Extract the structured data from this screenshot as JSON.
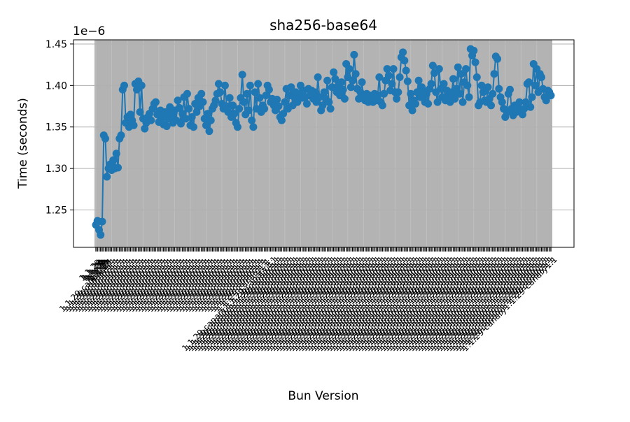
{
  "chart_data": {
    "type": "line",
    "title": "sha256-base64",
    "xlabel": "Bun Version",
    "ylabel": "Time (seconds)",
    "y_offset_label": "1e−6",
    "y_scale": 1e-06,
    "ylim": [
      1.205e-06,
      1.455e-06
    ],
    "y_ticks": [
      1.25e-06,
      1.3e-06,
      1.35e-06,
      1.4e-06,
      1.45e-06
    ],
    "y_tick_labels": [
      "1.25",
      "1.30",
      "1.35",
      "1.40",
      "1.45"
    ],
    "grid": true,
    "x_tick_labels_legible": false,
    "x_tick_labels": [
      "1.1.29-canary"
    ],
    "series": [
      {
        "color": "#1f77b4",
        "values": [
          1.232e-06,
          1.237e-06,
          1.226e-06,
          1.22e-06,
          1.236e-06,
          1.34e-06,
          1.336e-06,
          1.29e-06,
          1.3e-06,
          1.305e-06,
          1.298e-06,
          1.31e-06,
          1.3e-06,
          1.318e-06,
          1.301e-06,
          1.336e-06,
          1.34e-06,
          1.395e-06,
          1.4e-06,
          1.355e-06,
          1.362e-06,
          1.35e-06,
          1.365e-06,
          1.358e-06,
          1.352e-06,
          1.402e-06,
          1.395e-06,
          1.405e-06,
          1.368e-06,
          1.4e-06,
          1.36e-06,
          1.348e-06,
          1.355e-06,
          1.362e-06,
          1.366e-06,
          1.358e-06,
          1.372e-06,
          1.378e-06,
          1.38e-06,
          1.365e-06,
          1.356e-06,
          1.37e-06,
          1.362e-06,
          1.353e-06,
          1.368e-06,
          1.351e-06,
          1.36e-06,
          1.374e-06,
          1.364e-06,
          1.355e-06,
          1.37e-06,
          1.358e-06,
          1.382e-06,
          1.373e-06,
          1.354e-06,
          1.366e-06,
          1.386e-06,
          1.36e-06,
          1.39e-06,
          1.372e-06,
          1.352e-06,
          1.362e-06,
          1.35e-06,
          1.378e-06,
          1.368e-06,
          1.385e-06,
          1.375e-06,
          1.39e-06,
          1.38e-06,
          1.36e-06,
          1.352e-06,
          1.366e-06,
          1.345e-06,
          1.358e-06,
          1.372e-06,
          1.376e-06,
          1.382e-06,
          1.39e-06,
          1.402e-06,
          1.392e-06,
          1.378e-06,
          1.372e-06,
          1.4e-06,
          1.375e-06,
          1.368e-06,
          1.385e-06,
          1.362e-06,
          1.376e-06,
          1.366e-06,
          1.355e-06,
          1.35e-06,
          1.372e-06,
          1.385e-06,
          1.413e-06,
          1.38e-06,
          1.365e-06,
          1.39e-06,
          1.37e-06,
          1.4e-06,
          1.358e-06,
          1.35e-06,
          1.392e-06,
          1.372e-06,
          1.402e-06,
          1.385e-06,
          1.368e-06,
          1.376e-06,
          1.372e-06,
          1.388e-06,
          1.4e-06,
          1.395e-06,
          1.38e-06,
          1.384e-06,
          1.376e-06,
          1.37e-06,
          1.383e-06,
          1.375e-06,
          1.362e-06,
          1.358e-06,
          1.366e-06,
          1.38e-06,
          1.396e-06,
          1.372e-06,
          1.388e-06,
          1.398e-06,
          1.376e-06,
          1.386e-06,
          1.392e-06,
          1.38e-06,
          1.39e-06,
          1.4e-06,
          1.385e-06,
          1.394e-06,
          1.386e-06,
          1.378e-06,
          1.396e-06,
          1.388e-06,
          1.394e-06,
          1.384e-06,
          1.392e-06,
          1.38e-06,
          1.41e-06,
          1.386e-06,
          1.37e-06,
          1.376e-06,
          1.392e-06,
          1.384e-06,
          1.406e-06,
          1.38e-06,
          1.372e-06,
          1.398e-06,
          1.416e-06,
          1.408e-06,
          1.392e-06,
          1.4e-06,
          1.388e-06,
          1.404e-06,
          1.395e-06,
          1.384e-06,
          1.426e-06,
          1.41e-06,
          1.42e-06,
          1.398e-06,
          1.406e-06,
          1.437e-06,
          1.414e-06,
          1.396e-06,
          1.384e-06,
          1.392e-06,
          1.404e-06,
          1.386e-06,
          1.382e-06,
          1.39e-06,
          1.38e-06,
          1.388e-06,
          1.384e-06,
          1.38e-06,
          1.39e-06,
          1.382e-06,
          1.388e-06,
          1.41e-06,
          1.38e-06,
          1.376e-06,
          1.39e-06,
          1.406e-06,
          1.42e-06,
          1.412e-06,
          1.394e-06,
          1.402e-06,
          1.42e-06,
          1.392e-06,
          1.384e-06,
          1.392e-06,
          1.41e-06,
          1.434e-06,
          1.44e-06,
          1.43e-06,
          1.418e-06,
          1.405e-06,
          1.376e-06,
          1.39e-06,
          1.37e-06,
          1.382e-06,
          1.378e-06,
          1.392e-06,
          1.406e-06,
          1.386e-06,
          1.398e-06,
          1.394e-06,
          1.38e-06,
          1.39e-06,
          1.378e-06,
          1.396e-06,
          1.402e-06,
          1.424e-06,
          1.415e-06,
          1.392e-06,
          1.38e-06,
          1.42e-06,
          1.396e-06,
          1.386e-06,
          1.402e-06,
          1.382e-06,
          1.394e-06,
          1.388e-06,
          1.38e-06,
          1.392e-06,
          1.408e-06,
          1.384e-06,
          1.396e-06,
          1.422e-06,
          1.39e-06,
          1.414e-06,
          1.38e-06,
          1.404e-06,
          1.42e-06,
          1.4e-06,
          1.386e-06,
          1.444e-06,
          1.436e-06,
          1.442e-06,
          1.428e-06,
          1.41e-06,
          1.376e-06,
          1.38e-06,
          1.4e-06,
          1.392e-06,
          1.382e-06,
          1.38e-06,
          1.398e-06,
          1.384e-06,
          1.376e-06,
          1.39e-06,
          1.414e-06,
          1.435e-06,
          1.432e-06,
          1.396e-06,
          1.386e-06,
          1.38e-06,
          1.372e-06,
          1.362e-06,
          1.368e-06,
          1.39e-06,
          1.395e-06,
          1.372e-06,
          1.364e-06,
          1.376e-06,
          1.368e-06,
          1.376e-06,
          1.38e-06,
          1.37e-06,
          1.365e-06,
          1.372e-06,
          1.38e-06,
          1.402e-06,
          1.404e-06,
          1.374e-06,
          1.386e-06,
          1.426e-06,
          1.4e-06,
          1.42e-06,
          1.392e-06,
          1.414e-06,
          1.41e-06,
          1.396e-06,
          1.386e-06,
          1.382e-06,
          1.394e-06,
          1.392e-06,
          1.388e-06
        ]
      }
    ]
  }
}
